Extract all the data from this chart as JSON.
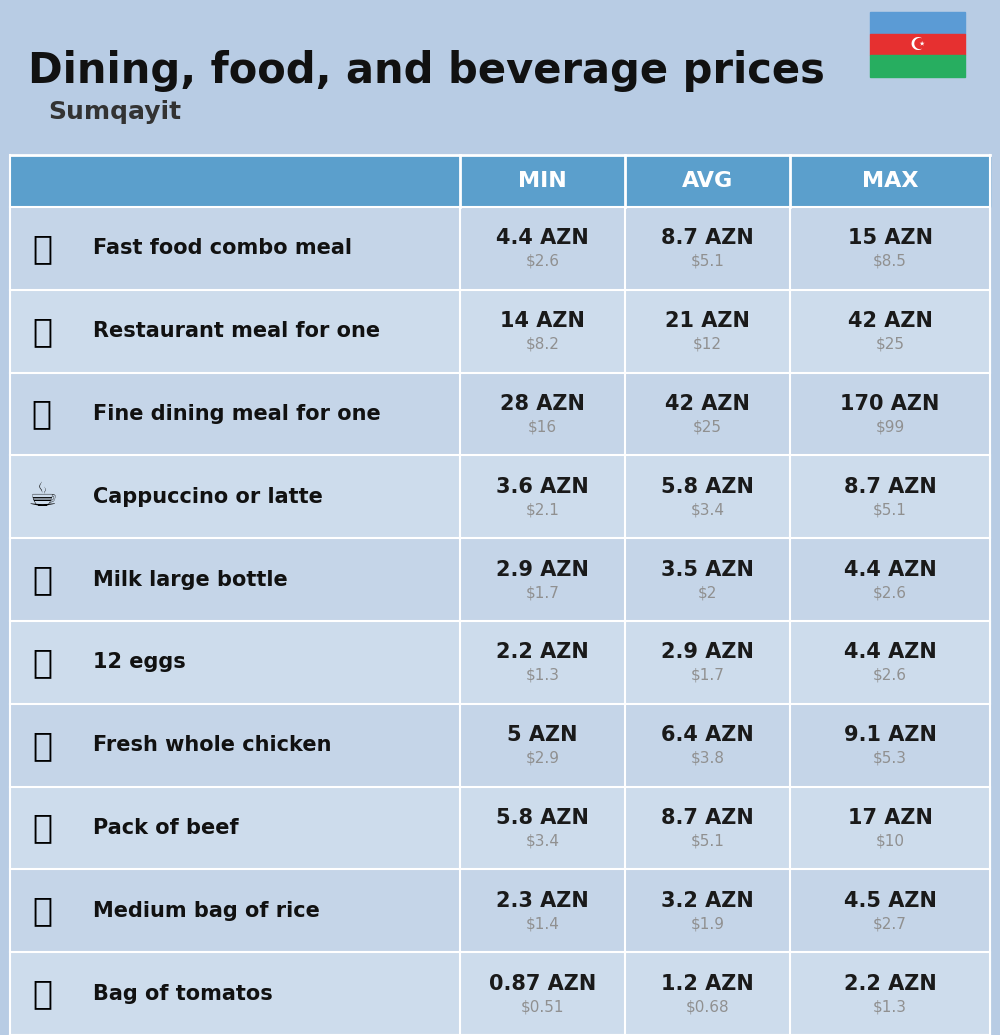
{
  "title": "Dining, food, and beverage prices",
  "subtitle": "Sumqayit",
  "background_color": "#b8cce4",
  "header_bg_color": "#5b9fcc",
  "header_text_color": "#ffffff",
  "separator_color": "#ffffff",
  "title_fontsize": 30,
  "subtitle_fontsize": 18,
  "header_fontsize": 16,
  "label_fontsize": 15,
  "value_fontsize": 15,
  "sub_value_fontsize": 11,
  "rows": [
    {
      "label": "Fast food combo meal",
      "icon": "🍔",
      "min_azn": "4.4 AZN",
      "min_usd": "$2.6",
      "avg_azn": "8.7 AZN",
      "avg_usd": "$5.1",
      "max_azn": "15 AZN",
      "max_usd": "$8.5"
    },
    {
      "label": "Restaurant meal for one",
      "icon": "🍳",
      "min_azn": "14 AZN",
      "min_usd": "$8.2",
      "avg_azn": "21 AZN",
      "avg_usd": "$12",
      "max_azn": "42 AZN",
      "max_usd": "$25"
    },
    {
      "label": "Fine dining meal for one",
      "icon": "🍽️",
      "min_azn": "28 AZN",
      "min_usd": "$16",
      "avg_azn": "42 AZN",
      "avg_usd": "$25",
      "max_azn": "170 AZN",
      "max_usd": "$99"
    },
    {
      "label": "Cappuccino or latte",
      "icon": "☕",
      "min_azn": "3.6 AZN",
      "min_usd": "$2.1",
      "avg_azn": "5.8 AZN",
      "avg_usd": "$3.4",
      "max_azn": "8.7 AZN",
      "max_usd": "$5.1"
    },
    {
      "label": "Milk large bottle",
      "icon": "🥛",
      "min_azn": "2.9 AZN",
      "min_usd": "$1.7",
      "avg_azn": "3.5 AZN",
      "avg_usd": "$2",
      "max_azn": "4.4 AZN",
      "max_usd": "$2.6"
    },
    {
      "label": "12 eggs",
      "icon": "🥚",
      "min_azn": "2.2 AZN",
      "min_usd": "$1.3",
      "avg_azn": "2.9 AZN",
      "avg_usd": "$1.7",
      "max_azn": "4.4 AZN",
      "max_usd": "$2.6"
    },
    {
      "label": "Fresh whole chicken",
      "icon": "🍗",
      "min_azn": "5 AZN",
      "min_usd": "$2.9",
      "avg_azn": "6.4 AZN",
      "avg_usd": "$3.8",
      "max_azn": "9.1 AZN",
      "max_usd": "$5.3"
    },
    {
      "label": "Pack of beef",
      "icon": "🥩",
      "min_azn": "5.8 AZN",
      "min_usd": "$3.4",
      "avg_azn": "8.7 AZN",
      "avg_usd": "$5.1",
      "max_azn": "17 AZN",
      "max_usd": "$10"
    },
    {
      "label": "Medium bag of rice",
      "icon": "🍚",
      "min_azn": "2.3 AZN",
      "min_usd": "$1.4",
      "avg_azn": "3.2 AZN",
      "avg_usd": "$1.9",
      "max_azn": "4.5 AZN",
      "max_usd": "$2.7"
    },
    {
      "label": "Bag of tomatos",
      "icon": "🍅",
      "min_azn": "0.87 AZN",
      "min_usd": "$0.51",
      "avg_azn": "1.2 AZN",
      "avg_usd": "$0.68",
      "max_azn": "2.2 AZN",
      "max_usd": "$1.3"
    }
  ],
  "col_headers": [
    "MIN",
    "AVG",
    "MAX"
  ],
  "flag_blue": "#5b9bd5",
  "flag_red": "#e63030",
  "flag_green": "#27ae60",
  "row_colors": [
    "#c5d5e8",
    "#cddce f"
  ],
  "header_gap_color": "#b8cce4"
}
